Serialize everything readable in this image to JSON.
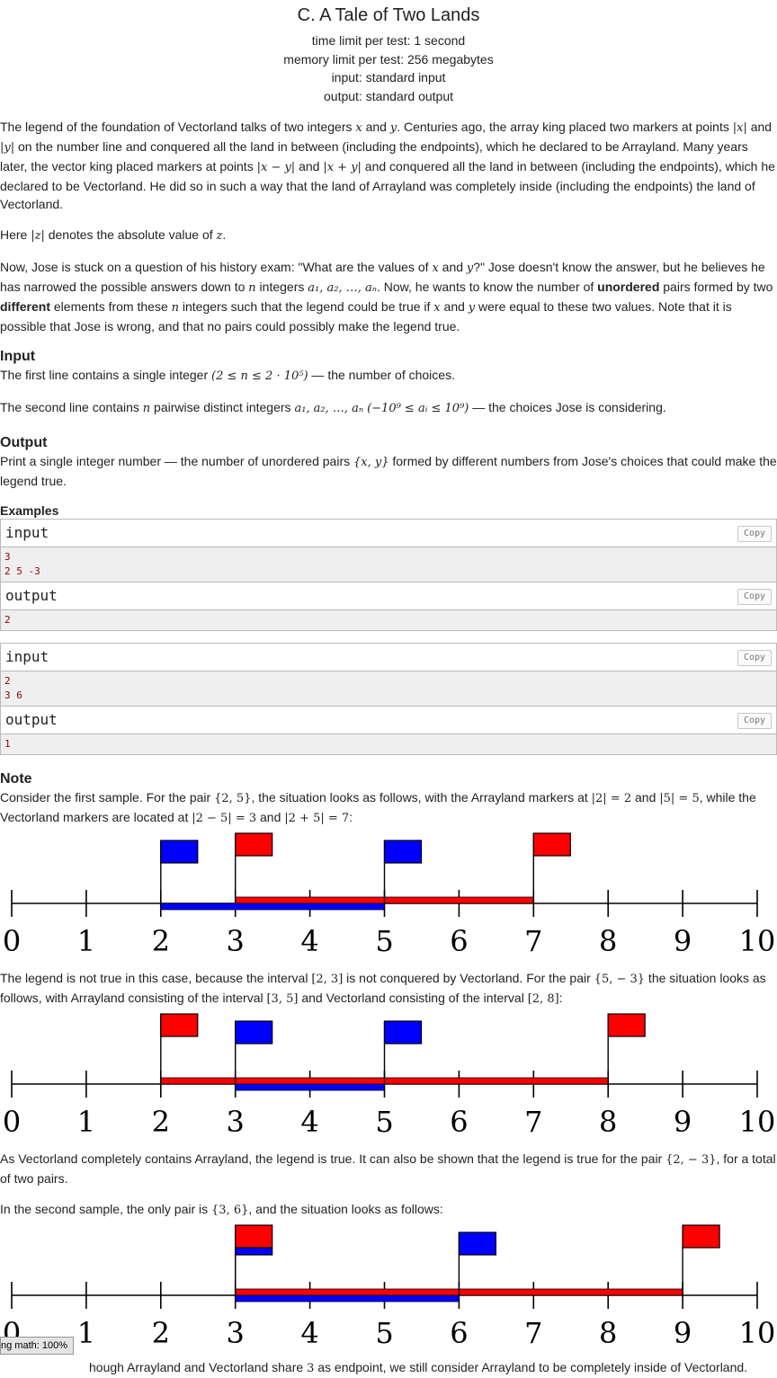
{
  "problem": {
    "title": "C. A Tale of Two Lands",
    "time_limit": "time limit per test: 1 second",
    "memory_limit": "memory limit per test: 256 megabytes",
    "input_file": "input: standard input",
    "output_file": "output: standard output"
  },
  "statement": {
    "p1_a": "The legend of the foundation of Vectorland talks of two integers ",
    "p1_b": ". Centuries ago, the array king placed two markers at points ",
    "p1_c": " on the number line and conquered all the land in between (including the endpoints), which he declared to be Arrayland. Many years later, the vector king placed markers at points ",
    "p1_d": " and conquered all the land in between (including the endpoints), which he declared to be Vectorland. He did so in such a way that the land of Arrayland was completely inside (including the endpoints) the land of Vectorland.",
    "p2_a": "Here ",
    "p2_b": " denotes the absolute value of ",
    "p3_a": "Now, Jose is stuck on a question of his history exam: \"What are the values of ",
    "p3_b": "?\" Jose doesn't know the answer, but he believes he has narrowed the possible answers down to ",
    "p3_c": " integers ",
    "p3_d": ". Now, he wants to know the number of ",
    "p3_bold1": "unordered",
    "p3_e": " pairs formed by two ",
    "p3_bold2": "different",
    "p3_f": " elements from these ",
    "p3_g": " integers such that the legend could be true if ",
    "p3_h": " were equal to these two values. Note that it is possible that Jose is wrong, and that no pairs could possibly make the legend true.",
    "and": " and ",
    "period": "."
  },
  "input_section": {
    "title": "Input",
    "l1_a": "The first line contains a single integer ",
    "l1_b": " — the number of choices.",
    "l2_a": "The second line contains ",
    "l2_b": " pairwise distinct integers ",
    "l2_c": " — the choices Jose is considering."
  },
  "output_section": {
    "title": "Output",
    "text_a": "Print a single integer number — the number of unordered pairs ",
    "text_b": " formed by different numbers from Jose's choices that could make the legend true."
  },
  "examples": {
    "title": "Examples",
    "input_label": "input",
    "output_label": "output",
    "copy_label": "Copy",
    "tests": [
      {
        "input": "3\n2 5 -3",
        "output": "2"
      },
      {
        "input": "2\n3 6",
        "output": "1"
      }
    ]
  },
  "note": {
    "title": "Note",
    "n1_a": "Consider the first sample. For the pair ",
    "n1_b": ", the situation looks as follows, with the Arrayland markers at ",
    "n1_c": ", while the Vectorland markers are located at ",
    "n1_d": ":",
    "n2_a": "The legend is not true in this case, because the interval ",
    "n2_b": " is not conquered by Vectorland. For the pair ",
    "n2_c": " the situation looks as follows, with Arrayland consisting of the interval ",
    "n2_d": " and Vectorland consisting of the interval ",
    "n2_e": ":",
    "n3_a": "As Vectorland completely contains Arrayland, the legend is true. It can also be shown that the legend is true for the pair ",
    "n3_b": ", for a total of two pairs.",
    "n4_a": "In the second sample, the only pair is ",
    "n4_b": ", and the situation looks as follows:",
    "n5": "hough Arrayland and Vectorland share ",
    "n5_b": " as endpoint, we still consider Arrayland to be completely inside of Vectorland."
  },
  "math": {
    "x": "x",
    "y": "y",
    "z": "z",
    "n": "n",
    "abs_x": "|x|",
    "abs_y": "|y|",
    "abs_z": "|z|",
    "abs_xmy": "|x − y|",
    "abs_xpy": "|x + y|",
    "seq": "a₁, a₂, …, aₙ",
    "n_range": "(2 ≤ n ≤ 2 · 10⁵)",
    "a_range": "(−10⁹ ≤ aᵢ ≤ 10⁹)",
    "pair_xy": "{x, y}",
    "pair_25": "{2, 5}",
    "abs2": "|2| = 2",
    "abs5": "|5| = 5",
    "abs2m5": "|2 − 5| = 3",
    "abs2p5": "|2 + 5| = 7",
    "int23": "[2, 3]",
    "pair_5m3": "{5, − 3}",
    "int35": "[3, 5]",
    "int28": "[2, 8]",
    "pair_2m3": "{2, − 3}",
    "pair_36": "{3, 6}",
    "three": "3"
  },
  "diagrams": {
    "axis_labels": [
      "0",
      "1",
      "2",
      "3",
      "4",
      "5",
      "6",
      "7",
      "8",
      "9",
      "10"
    ],
    "colors": {
      "arrayland": "#0000ff",
      "vectorland": "#ff0000",
      "axis": "#000000"
    },
    "items": [
      {
        "arrayland": [
          2,
          5
        ],
        "vectorland": [
          3,
          7
        ]
      },
      {
        "arrayland": [
          3,
          5
        ],
        "vectorland": [
          2,
          8
        ]
      },
      {
        "arrayland": [
          3,
          6
        ],
        "vectorland": [
          3,
          9
        ]
      }
    ]
  },
  "status_bar": {
    "text": "ng math: 100%"
  }
}
